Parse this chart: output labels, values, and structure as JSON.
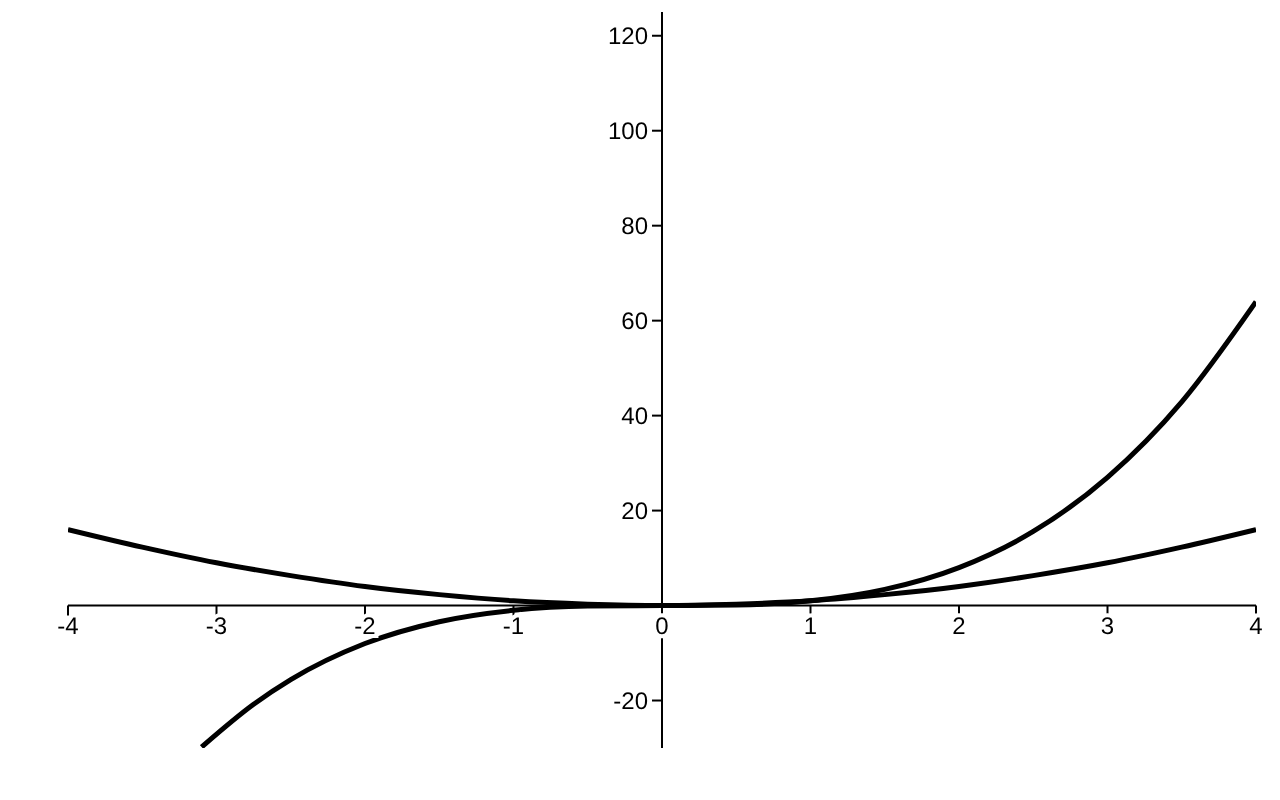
{
  "chart_data": {
    "type": "line",
    "xlim": [
      -4,
      4
    ],
    "ylim": [
      -30,
      125
    ],
    "xticks": [
      -4,
      -3,
      -2,
      -1,
      0,
      1,
      2,
      3,
      4
    ],
    "yticks": [
      -20,
      20,
      40,
      60,
      80,
      100,
      120
    ],
    "marker": "none",
    "line_style": "solid",
    "series": [
      {
        "color": "#000000",
        "x": [
          -4,
          -3.5,
          -3,
          -2.5,
          -2,
          -1.5,
          -1,
          -0.5,
          0,
          0.5,
          1,
          1.5,
          2,
          2.5,
          3,
          3.5,
          4
        ],
        "values": [
          16,
          12.3,
          9,
          6.3,
          4,
          2.3,
          1,
          0.3,
          0,
          0.3,
          1,
          2.3,
          4,
          6.3,
          9,
          12.3,
          16
        ]
      },
      {
        "color": "#000000",
        "x": [
          -3.1,
          -2.75,
          -2.5,
          -2,
          -1.5,
          -1,
          -0.5,
          0,
          0.5,
          1,
          1.5,
          2,
          2.5,
          3,
          3.5,
          4
        ],
        "values": [
          -29.8,
          -20.8,
          -15.6,
          -8,
          -3.4,
          -1,
          -0.1,
          0,
          0.1,
          1,
          3.4,
          8,
          15.6,
          27,
          42.9,
          64
        ]
      }
    ]
  }
}
